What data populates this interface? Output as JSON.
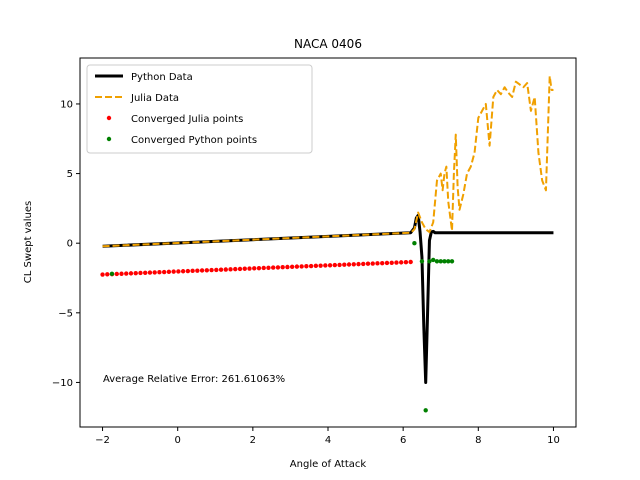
{
  "chart_data": {
    "type": "line",
    "title": "NACA 0406",
    "xlabel": "Angle of Attack",
    "ylabel": "CL Swept values",
    "xlim": [
      -2.6,
      10.6
    ],
    "ylim": [
      -13.2,
      13.3
    ],
    "xticks": [
      -2,
      0,
      2,
      4,
      6,
      8,
      10
    ],
    "yticks": [
      -10,
      -5,
      0,
      5,
      10
    ],
    "xtick_labels": [
      "−2",
      "0",
      "2",
      "4",
      "6",
      "8",
      "10"
    ],
    "ytick_labels": [
      "−10",
      "−5",
      "0",
      "5",
      "10"
    ],
    "grid": false,
    "legend_position": "top-left",
    "annotation": "Average Relative Error: 261.61063%",
    "series": [
      {
        "name": "Python Data",
        "style": "line",
        "color": "#000000",
        "x": [
          -2.0,
          6.2,
          6.3,
          6.35,
          6.4,
          6.45,
          6.5,
          6.55,
          6.6,
          6.65,
          6.7,
          6.75,
          6.8,
          6.85,
          6.9,
          7.0,
          10.0
        ],
        "y": [
          -0.22,
          0.75,
          1.1,
          1.8,
          2.0,
          0.8,
          -1.0,
          -6.0,
          -10.0,
          -5.0,
          0.2,
          0.8,
          0.85,
          0.75,
          0.75,
          0.75,
          0.75
        ]
      },
      {
        "name": "Julia Data",
        "style": "dashed",
        "color": "#f0a000",
        "x": [
          -2.0,
          6.2,
          6.3,
          6.4,
          6.5,
          6.6,
          6.7,
          6.8,
          6.9,
          7.0,
          7.05,
          7.1,
          7.15,
          7.2,
          7.3,
          7.35,
          7.4,
          7.45,
          7.5,
          7.6,
          7.7,
          7.8,
          7.9,
          8.0,
          8.1,
          8.2,
          8.3,
          8.4,
          8.5,
          8.6,
          8.7,
          8.8,
          8.9,
          9.0,
          9.1,
          9.2,
          9.3,
          9.4,
          9.5,
          9.6,
          9.7,
          9.8,
          9.9,
          9.95,
          10.0
        ],
        "y": [
          -0.22,
          0.75,
          1.0,
          2.2,
          1.5,
          1.0,
          0.8,
          1.5,
          4.5,
          5.0,
          3.8,
          5.0,
          5.5,
          3.0,
          0.9,
          5.0,
          7.8,
          4.0,
          2.4,
          3.5,
          5.0,
          5.5,
          6.5,
          9.0,
          9.5,
          10.0,
          7.0,
          10.5,
          11.0,
          10.7,
          11.2,
          10.8,
          10.5,
          11.6,
          11.4,
          11.2,
          11.5,
          9.5,
          10.5,
          6.5,
          4.5,
          3.8,
          12.0,
          11.0,
          11.0
        ]
      },
      {
        "name": "Converged Julia points",
        "style": "points",
        "color": "#ff0000",
        "x_start": -2.0,
        "x_end": 6.2,
        "y_start": -2.25,
        "y_end": -1.35,
        "count": 66
      },
      {
        "name": "Converged Python points",
        "style": "points",
        "color": "#008000",
        "x": [
          -1.75,
          6.3,
          6.5,
          6.6,
          6.7,
          6.8,
          6.9,
          7.0,
          7.1,
          7.2,
          7.3
        ],
        "y": [
          -2.2,
          0.0,
          -1.3,
          -12.0,
          -1.3,
          -1.2,
          -1.3,
          -1.3,
          -1.3,
          -1.3,
          -1.3
        ]
      }
    ]
  }
}
